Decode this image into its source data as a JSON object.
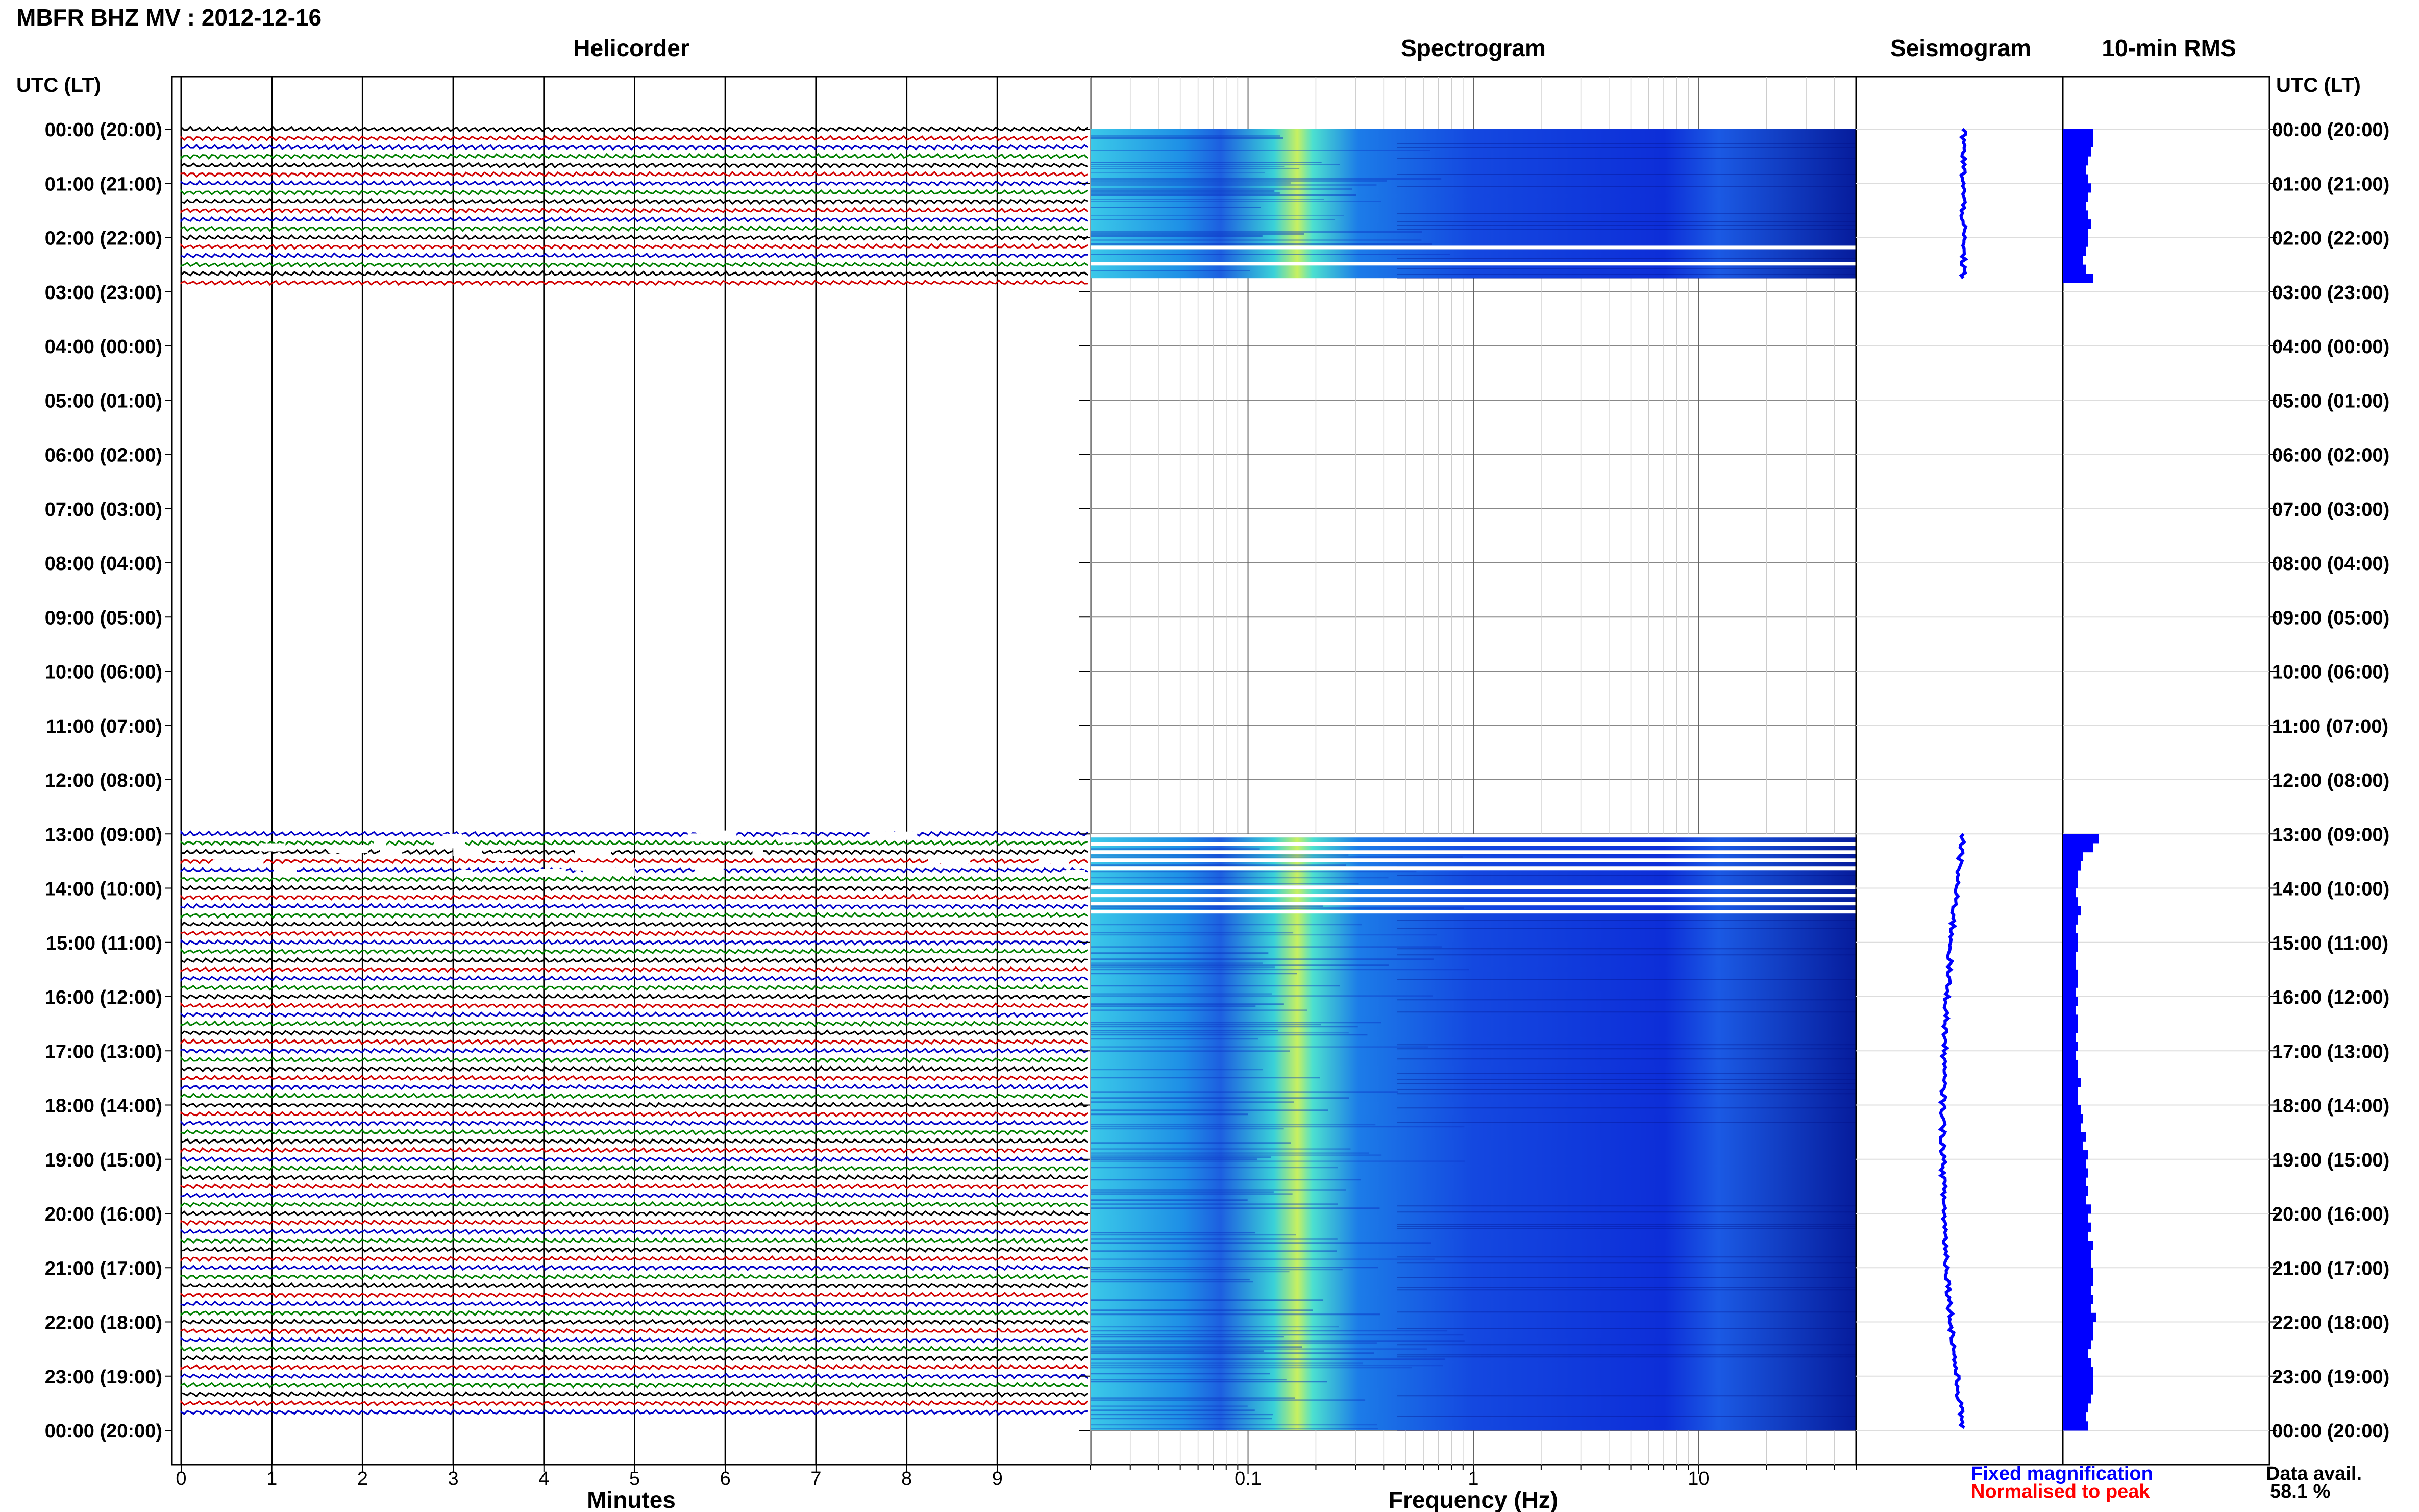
{
  "header": {
    "title": "MBFR BHZ MV : 2012-12-16",
    "time_axis_label": "UTC (LT)"
  },
  "panels": {
    "helicorder": "Helicorder",
    "spectrogram": "Spectrogram",
    "seismogram": "Seismogram",
    "rms": "10-min RMS"
  },
  "xlabels": {
    "helicorder": "Minutes",
    "spectrogram": "Frequency (Hz)"
  },
  "legend": {
    "fixed": "Fixed magnification",
    "fixed_color": "#0000ff",
    "normalised": "Normalised to peak",
    "normalised_color": "#ff0000"
  },
  "data_avail": {
    "label": "Data avail.",
    "value": "58.1 %"
  },
  "colors": {
    "trace_cycle": [
      "#000000",
      "#d00000",
      "#0000c8",
      "#008000"
    ],
    "spectrogram_bg": "#0a2ad8",
    "seismogram": "#0000ff",
    "rms_bar": "#0000ff"
  },
  "chart_data": {
    "type": "heatmap",
    "time_ticks": [
      "00:00 (20:00)",
      "01:00 (21:00)",
      "02:00 (22:00)",
      "03:00 (23:00)",
      "04:00 (00:00)",
      "05:00 (01:00)",
      "06:00 (02:00)",
      "07:00 (03:00)",
      "08:00 (04:00)",
      "09:00 (05:00)",
      "10:00 (06:00)",
      "11:00 (07:00)",
      "12:00 (08:00)",
      "13:00 (09:00)",
      "14:00 (10:00)",
      "15:00 (11:00)",
      "16:00 (12:00)",
      "17:00 (13:00)",
      "18:00 (14:00)",
      "19:00 (15:00)",
      "20:00 (16:00)",
      "21:00 (17:00)",
      "22:00 (18:00)",
      "23:00 (19:00)",
      "00:00 (20:00)"
    ],
    "helicorder_x_ticks": [
      "0",
      "1",
      "2",
      "3",
      "4",
      "5",
      "6",
      "7",
      "8",
      "9"
    ],
    "helicorder_xlim": [
      0,
      10
    ],
    "spectrogram_x_ticks": [
      "0.1",
      "1",
      "10"
    ],
    "spectrogram_xlim": [
      0.02,
      50
    ],
    "spectrogram_xscale": "log",
    "spectrogram_peak_hz": 0.2,
    "data_segments_hours": [
      [
        0,
        2.75
      ],
      [
        13,
        24
      ]
    ],
    "spectrogram_gaps_hours": [
      [
        2.15,
        2.3
      ],
      [
        2.45,
        2.55
      ],
      [
        13,
        13.65
      ],
      [
        13.95,
        14.5
      ]
    ],
    "trace_interval_minutes": 10,
    "rms_10min": [
      0.6,
      0.6,
      0.55,
      0.5,
      0.45,
      0.5,
      0.55,
      0.5,
      0.45,
      0.5,
      0.55,
      0.5,
      0.5,
      0.45,
      0.4,
      0.45,
      0.6,
      0.7,
      0.6,
      0.4,
      0.35,
      0.3,
      0.3,
      0.25,
      0.3,
      0.35,
      0.3,
      0.25,
      0.3,
      0.3,
      0.25,
      0.25,
      0.3,
      0.3,
      0.25,
      0.3,
      0.25,
      0.3,
      0.3,
      0.25,
      0.3,
      0.25,
      0.3,
      0.3,
      0.35,
      0.3,
      0.3,
      0.35,
      0.4,
      0.35,
      0.45,
      0.4,
      0.5,
      0.45,
      0.5,
      0.45,
      0.5,
      0.45,
      0.55,
      0.5,
      0.55,
      0.5,
      0.6,
      0.55,
      0.55,
      0.6,
      0.6,
      0.55,
      0.6,
      0.55,
      0.65,
      0.6,
      0.6,
      0.55,
      0.5,
      0.55,
      0.6
    ],
    "rms_10min_start_hour": 0
  }
}
